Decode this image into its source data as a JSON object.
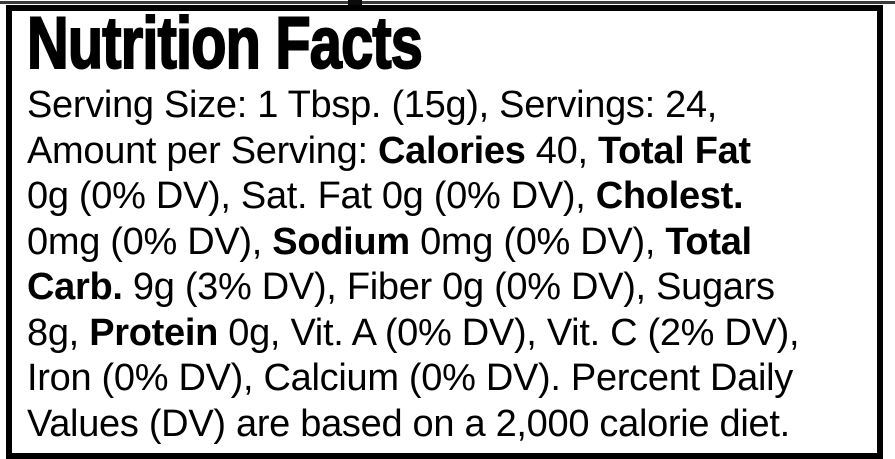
{
  "label": {
    "title": "Nutrition Facts",
    "lines": [
      [
        {
          "t": "Serving Size: 1 Tbsp. (15g), Servings: 24,",
          "b": false
        }
      ],
      [
        {
          "t": "Amount per Serving: ",
          "b": false
        },
        {
          "t": "Calories",
          "b": true
        },
        {
          "t": " 40, ",
          "b": false
        },
        {
          "t": "Total Fat",
          "b": true
        }
      ],
      [
        {
          "t": "0g (0% DV), Sat. Fat 0g (0% DV), ",
          "b": false
        },
        {
          "t": "Cholest.",
          "b": true
        }
      ],
      [
        {
          "t": "0mg (0% DV), ",
          "b": false
        },
        {
          "t": "Sodium",
          "b": true
        },
        {
          "t": " 0mg (0% DV), ",
          "b": false
        },
        {
          "t": "Total",
          "b": true
        }
      ],
      [
        {
          "t": "Carb.",
          "b": true
        },
        {
          "t": " 9g (3% DV), Fiber 0g (0% DV), Sugars",
          "b": false
        }
      ],
      [
        {
          "t": "8g, ",
          "b": false
        },
        {
          "t": "Protein",
          "b": true
        },
        {
          "t": " 0g, Vit. A (0% DV), Vit. C (2% DV),",
          "b": false
        }
      ],
      [
        {
          "t": "Iron (0% DV), Calcium (0% DV). Percent Daily",
          "b": false
        }
      ],
      [
        {
          "t": "Values (DV) are based on a 2,000 calorie diet.",
          "b": false
        }
      ]
    ],
    "colors": {
      "text": "#000000",
      "background": "#ffffff",
      "border": "#000000"
    }
  }
}
